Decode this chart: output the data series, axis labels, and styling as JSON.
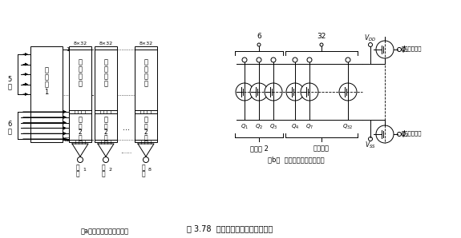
{
  "bg_color": "#ffffff",
  "title": "图 3.78  只读存储器框图及其行构成",
  "label_a": "(a)只读存储器（框图）",
  "label_b": "(b)  只读存储器（行构成）",
  "fig_width": 5.75,
  "fig_height": 2.98,
  "dpi": 100
}
